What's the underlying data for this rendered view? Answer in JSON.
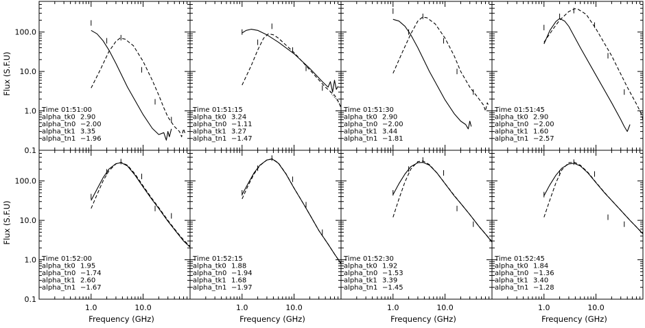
{
  "figure": {
    "xlabel": "Frequency (GHz)",
    "ylabel": "Flux (S.F.U)",
    "x_tick_labels": [
      "1.0",
      "10.0"
    ],
    "y_tick_labels": [
      "0.1",
      "1.0",
      "10.0",
      "100.0"
    ]
  },
  "chart_data": [
    {
      "type": "line",
      "panel": 0,
      "xlim": [
        0.1,
        80
      ],
      "ylim": [
        0.1,
        600
      ],
      "xscale": "log",
      "yscale": "log",
      "annotation": [
        {
          "label": "Time",
          "value": "01:51:00"
        },
        {
          "label": "alpha_tk0",
          "value": "2.90"
        },
        {
          "label": "alpha_tn0",
          "value": "-2.00"
        },
        {
          "label": "alpha_tk1",
          "value": "3.35"
        },
        {
          "label": "alpha_tn1",
          "value": "-1.96"
        }
      ],
      "series": [
        {
          "style": "solid",
          "x": [
            1.0,
            1.3,
            1.7,
            2.2,
            3.0,
            5.0,
            10,
            15,
            20,
            25,
            28,
            30,
            32,
            35
          ],
          "y": [
            110,
            90,
            60,
            35,
            16,
            4.0,
            0.8,
            0.36,
            0.25,
            0.28,
            0.18,
            0.3,
            0.22,
            0.35
          ]
        },
        {
          "style": "dashed",
          "x": [
            1.0,
            1.5,
            2.2,
            3.0,
            3.6,
            4.5,
            6.5,
            10,
            15,
            20,
            25,
            30,
            40,
            50,
            55,
            60,
            65
          ],
          "y": [
            3.8,
            11,
            32,
            58,
            70,
            66,
            45,
            18,
            6,
            2.5,
            1.2,
            0.7,
            0.4,
            0.3,
            0.22,
            0.35,
            0.25
          ]
        }
      ],
      "observed": [
        {
          "x": 1.0,
          "y": 170
        },
        {
          "x": 2.0,
          "y": 60
        },
        {
          "x": 3.75,
          "y": 72
        },
        {
          "x": 9.4,
          "y": 11
        },
        {
          "x": 17,
          "y": 1.7
        },
        {
          "x": 35,
          "y": 0.6
        }
      ]
    },
    {
      "type": "line",
      "panel": 1,
      "xlim": [
        0.1,
        80
      ],
      "ylim": [
        0.1,
        600
      ],
      "xscale": "log",
      "yscale": "log",
      "annotation": [
        {
          "label": "Time",
          "value": "01:51:15"
        },
        {
          "label": "alpha_tk0",
          "value": "3.24"
        },
        {
          "label": "alpha_tn0",
          "value": "-1.11"
        },
        {
          "label": "alpha_tk1",
          "value": "3.27"
        },
        {
          "label": "alpha_tn1",
          "value": "-1.47"
        }
      ],
      "series": [
        {
          "style": "solid",
          "x": [
            1.0,
            1.2,
            1.5,
            2.0,
            3.0,
            5.0,
            10,
            20,
            35,
            45,
            50,
            55,
            60,
            65,
            70
          ],
          "y": [
            95,
            110,
            118,
            110,
            85,
            55,
            28,
            12,
            5.5,
            4.0,
            5.5,
            3.0,
            6.0,
            3.5,
            4.2
          ]
        },
        {
          "style": "dashed",
          "x": [
            1.0,
            1.5,
            2.0,
            2.6,
            3.2,
            4.0,
            5.0,
            10,
            20,
            40,
            60,
            70,
            80
          ],
          "y": [
            4.5,
            14,
            35,
            70,
            90,
            85,
            70,
            30,
            11,
            4.0,
            2.5,
            1.8,
            1.2
          ]
        },
        {
          "style": "dotted",
          "x": [
            50,
            55,
            60,
            65,
            70,
            75,
            80
          ],
          "y": [
            3.0,
            2.5,
            2.2,
            2.0,
            1.7,
            1.5,
            1.3
          ]
        }
      ],
      "observed": [
        {
          "x": 1.0,
          "y": 100
        },
        {
          "x": 2.0,
          "y": 55
        },
        {
          "x": 3.75,
          "y": 140
        },
        {
          "x": 9.4,
          "y": 35
        },
        {
          "x": 17,
          "y": 12
        },
        {
          "x": 35,
          "y": 3.8
        }
      ]
    },
    {
      "type": "line",
      "panel": 2,
      "xlim": [
        0.1,
        80
      ],
      "ylim": [
        0.1,
        600
      ],
      "xscale": "log",
      "yscale": "log",
      "annotation": [
        {
          "label": "Time",
          "value": "01:51:30"
        },
        {
          "label": "alpha_tk0",
          "value": "2.90"
        },
        {
          "label": "alpha_tn0",
          "value": "-2.00"
        },
        {
          "label": "alpha_tk1",
          "value": "3.44"
        },
        {
          "label": "alpha_tn1",
          "value": "-1.81"
        }
      ],
      "series": [
        {
          "style": "solid",
          "x": [
            1.0,
            1.3,
            1.7,
            2.2,
            3.0,
            5.0,
            10,
            15,
            20,
            25,
            28,
            30,
            32
          ],
          "y": [
            210,
            190,
            140,
            85,
            40,
            10,
            1.9,
            0.85,
            0.55,
            0.45,
            0.35,
            0.55,
            0.4
          ]
        },
        {
          "style": "dashed",
          "x": [
            1.0,
            1.5,
            2.2,
            3.0,
            3.7,
            4.5,
            6.5,
            10,
            15,
            20,
            30,
            45,
            55,
            60,
            65,
            70
          ],
          "y": [
            9,
            30,
            90,
            190,
            240,
            230,
            160,
            70,
            25,
            10,
            4.0,
            2.0,
            1.4,
            1.0,
            1.6,
            1.3
          ]
        }
      ],
      "observed": [
        {
          "x": 1.0,
          "y": 340
        },
        {
          "x": 2.0,
          "y": 100
        },
        {
          "x": 3.75,
          "y": 250
        },
        {
          "x": 9.4,
          "y": 60
        },
        {
          "x": 17,
          "y": 10
        },
        {
          "x": 35,
          "y": 3.0
        }
      ]
    },
    {
      "type": "line",
      "panel": 3,
      "xlim": [
        0.1,
        80
      ],
      "ylim": [
        0.1,
        600
      ],
      "xscale": "log",
      "yscale": "log",
      "annotation": [
        {
          "label": "Time",
          "value": "01:51:45"
        },
        {
          "label": "alpha_tk0",
          "value": "2.90"
        },
        {
          "label": "alpha_tn0",
          "value": "-2.00"
        },
        {
          "label": "alpha_tk1",
          "value": "1.60"
        },
        {
          "label": "alpha_tn1",
          "value": "-2.57"
        }
      ],
      "series": [
        {
          "style": "solid",
          "x": [
            1.0,
            1.3,
            1.7,
            2.0,
            2.5,
            3.0,
            5.0,
            10,
            20,
            30,
            35,
            40,
            45
          ],
          "y": [
            50,
            110,
            185,
            220,
            190,
            140,
            40,
            8.0,
            1.6,
            0.6,
            0.4,
            0.3,
            0.45
          ]
        },
        {
          "style": "dashed",
          "x": [
            1.0,
            1.5,
            2.0,
            3.0,
            3.9,
            4.5,
            6.5,
            10,
            20,
            40,
            60,
            70,
            75,
            80
          ],
          "y": [
            55,
            120,
            200,
            330,
            390,
            380,
            280,
            120,
            25,
            4.0,
            1.5,
            1.0,
            0.8,
            0.6
          ]
        }
      ],
      "observed": [
        {
          "x": 1.0,
          "y": 130
        },
        {
          "x": 2.0,
          "y": 250
        },
        {
          "x": 3.75,
          "y": 350
        },
        {
          "x": 9.4,
          "y": 150
        },
        {
          "x": 17,
          "y": 25
        },
        {
          "x": 35,
          "y": 3.0
        }
      ]
    },
    {
      "type": "line",
      "panel": 4,
      "xlim": [
        0.1,
        80
      ],
      "ylim": [
        0.1,
        600
      ],
      "xscale": "log",
      "yscale": "log",
      "annotation": [
        {
          "label": "Time",
          "value": "01:52:00"
        },
        {
          "label": "alpha_tk0",
          "value": "1.95"
        },
        {
          "label": "alpha_tn0",
          "value": "-1.74"
        },
        {
          "label": "alpha_tk1",
          "value": "2.60"
        },
        {
          "label": "alpha_tn1",
          "value": "-1.67"
        }
      ],
      "series": [
        {
          "style": "solid",
          "x": [
            1.0,
            1.3,
            1.7,
            2.2,
            3.0,
            3.8,
            5.0,
            7.0,
            10,
            15,
            20,
            30,
            45,
            60,
            80
          ],
          "y": [
            32,
            62,
            120,
            200,
            275,
            290,
            240,
            140,
            70,
            33,
            20,
            9.5,
            4.8,
            3.0,
            2.1
          ]
        },
        {
          "style": "dashed",
          "x": [
            1.0,
            1.3,
            1.7,
            2.2,
            3.0,
            3.8,
            5.0,
            7.0,
            10,
            15,
            20,
            30,
            45,
            60,
            80
          ],
          "y": [
            20,
            45,
            100,
            180,
            270,
            295,
            250,
            150,
            75,
            35,
            21,
            10,
            5.0,
            3.2,
            2.2
          ]
        }
      ],
      "observed": [
        {
          "x": 1.0,
          "y": 40
        },
        {
          "x": 2.0,
          "y": 170
        },
        {
          "x": 3.75,
          "y": 310
        },
        {
          "x": 9.4,
          "y": 130
        },
        {
          "x": 17,
          "y": 20
        },
        {
          "x": 35,
          "y": 13
        }
      ]
    },
    {
      "type": "line",
      "panel": 5,
      "xlim": [
        0.1,
        80
      ],
      "ylim": [
        0.1,
        600
      ],
      "xscale": "log",
      "yscale": "log",
      "annotation": [
        {
          "label": "Time",
          "value": "01:52:15"
        },
        {
          "label": "alpha_tk0",
          "value": "1.88"
        },
        {
          "label": "alpha_tn0",
          "value": "-1.94"
        },
        {
          "label": "alpha_tk1",
          "value": "1.68"
        },
        {
          "label": "alpha_tn1",
          "value": "-1.97"
        }
      ],
      "series": [
        {
          "style": "solid",
          "x": [
            1.0,
            1.3,
            1.7,
            2.2,
            3.0,
            3.8,
            5.0,
            7.0,
            10,
            15,
            20,
            30,
            45,
            60,
            80
          ],
          "y": [
            45,
            85,
            160,
            250,
            340,
            360,
            280,
            150,
            65,
            27,
            14,
            5.5,
            2.5,
            1.4,
            0.8
          ]
        },
        {
          "style": "dashed",
          "x": [
            1.0,
            1.3,
            1.7,
            2.2,
            3.0,
            3.8,
            5.0,
            7.0,
            10,
            15,
            20,
            30,
            45,
            60,
            80
          ],
          "y": [
            35,
            75,
            150,
            245,
            340,
            365,
            285,
            152,
            66,
            27,
            14,
            5.5,
            2.5,
            1.4,
            0.8
          ]
        }
      ],
      "observed": [
        {
          "x": 1.0,
          "y": 50
        },
        {
          "x": 2.0,
          "y": 210
        },
        {
          "x": 3.75,
          "y": 380
        },
        {
          "x": 9.4,
          "y": 110
        },
        {
          "x": 17,
          "y": 25
        },
        {
          "x": 35,
          "y": 5.0
        }
      ]
    },
    {
      "type": "line",
      "panel": 6,
      "xlim": [
        0.1,
        80
      ],
      "ylim": [
        0.1,
        600
      ],
      "xscale": "log",
      "yscale": "log",
      "annotation": [
        {
          "label": "Time",
          "value": "01:52:30"
        },
        {
          "label": "alpha_tk0",
          "value": "1.92"
        },
        {
          "label": "alpha_tn0",
          "value": "-1.53"
        },
        {
          "label": "alpha_tk1",
          "value": "3.39"
        },
        {
          "label": "alpha_tn1",
          "value": "-1.45"
        }
      ],
      "series": [
        {
          "style": "solid",
          "x": [
            1.0,
            1.3,
            1.7,
            2.2,
            3.0,
            3.8,
            5.0,
            7.0,
            10,
            15,
            20,
            30,
            45,
            60,
            80
          ],
          "y": [
            45,
            85,
            150,
            230,
            290,
            295,
            250,
            160,
            85,
            42,
            27,
            14,
            7.0,
            4.5,
            2.8
          ]
        },
        {
          "style": "dashed",
          "x": [
            1.0,
            1.3,
            1.7,
            2.2,
            3.0,
            3.8,
            5.0,
            7.0,
            10,
            15,
            20,
            30,
            45,
            60,
            80
          ],
          "y": [
            12,
            35,
            95,
            200,
            310,
            320,
            260,
            160,
            86,
            43,
            27,
            14,
            7.0,
            4.5,
            2.9
          ]
        }
      ],
      "observed": [
        {
          "x": 1.0,
          "y": 50
        },
        {
          "x": 2.0,
          "y": 200
        },
        {
          "x": 3.75,
          "y": 340
        },
        {
          "x": 9.4,
          "y": 160
        },
        {
          "x": 17,
          "y": 20
        },
        {
          "x": 35,
          "y": 8.0
        }
      ]
    },
    {
      "type": "line",
      "panel": 7,
      "xlim": [
        0.1,
        80
      ],
      "ylim": [
        0.1,
        600
      ],
      "xscale": "log",
      "yscale": "log",
      "annotation": [
        {
          "label": "Time",
          "value": "01:52:45"
        },
        {
          "label": "alpha_tk0",
          "value": "1.84"
        },
        {
          "label": "alpha_tn0",
          "value": "-1.36"
        },
        {
          "label": "alpha_tk1",
          "value": "3.40"
        },
        {
          "label": "alpha_tn1",
          "value": "-1.28"
        }
      ],
      "series": [
        {
          "style": "solid",
          "x": [
            1.0,
            1.3,
            1.7,
            2.2,
            3.0,
            3.8,
            5.0,
            7.0,
            10,
            15,
            20,
            30,
            45,
            60,
            80
          ],
          "y": [
            42,
            80,
            140,
            210,
            270,
            280,
            240,
            160,
            90,
            48,
            32,
            18,
            10,
            6.8,
            4.5
          ]
        },
        {
          "style": "dashed",
          "x": [
            1.0,
            1.3,
            1.7,
            2.2,
            3.0,
            3.8,
            5.0,
            7.0,
            10,
            15,
            20,
            30,
            45,
            60,
            80
          ],
          "y": [
            12,
            33,
            90,
            190,
            290,
            300,
            250,
            165,
            92,
            49,
            32,
            18,
            10,
            6.8,
            4.6
          ]
        }
      ],
      "observed": [
        {
          "x": 1.0,
          "y": 45
        },
        {
          "x": 2.0,
          "y": 160
        },
        {
          "x": 3.75,
          "y": 300
        },
        {
          "x": 9.4,
          "y": 150
        },
        {
          "x": 17,
          "y": 12
        },
        {
          "x": 35,
          "y": 8.0
        }
      ]
    }
  ]
}
